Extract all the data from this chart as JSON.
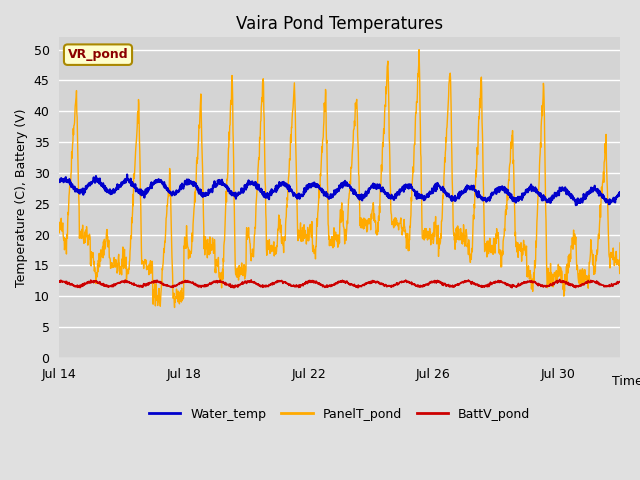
{
  "title": "Vaira Pond Temperatures",
  "xlabel": "Time",
  "ylabel": "Temperature (C), Battery (V)",
  "ylim": [
    0,
    52
  ],
  "yticks": [
    0,
    5,
    10,
    15,
    20,
    25,
    30,
    35,
    40,
    45,
    50
  ],
  "xtick_labels": [
    "Jul 14",
    "Jul 18",
    "Jul 22",
    "Jul 26",
    "Jul 30"
  ],
  "xtick_positions": [
    0,
    4,
    8,
    12,
    16
  ],
  "water_temp_color": "#0000cc",
  "panel_temp_color": "#ffaa00",
  "batt_color": "#cc0000",
  "fig_bg_color": "#e0e0e0",
  "plot_bg_color": "#d4d4d4",
  "legend_labels": [
    "Water_temp",
    "PanelT_pond",
    "BattV_pond"
  ],
  "annotation_text": "VR_pond",
  "annotation_bg": "#ffffcc",
  "annotation_border": "#aa8800",
  "n_days": 18,
  "pts_per_day": 96
}
